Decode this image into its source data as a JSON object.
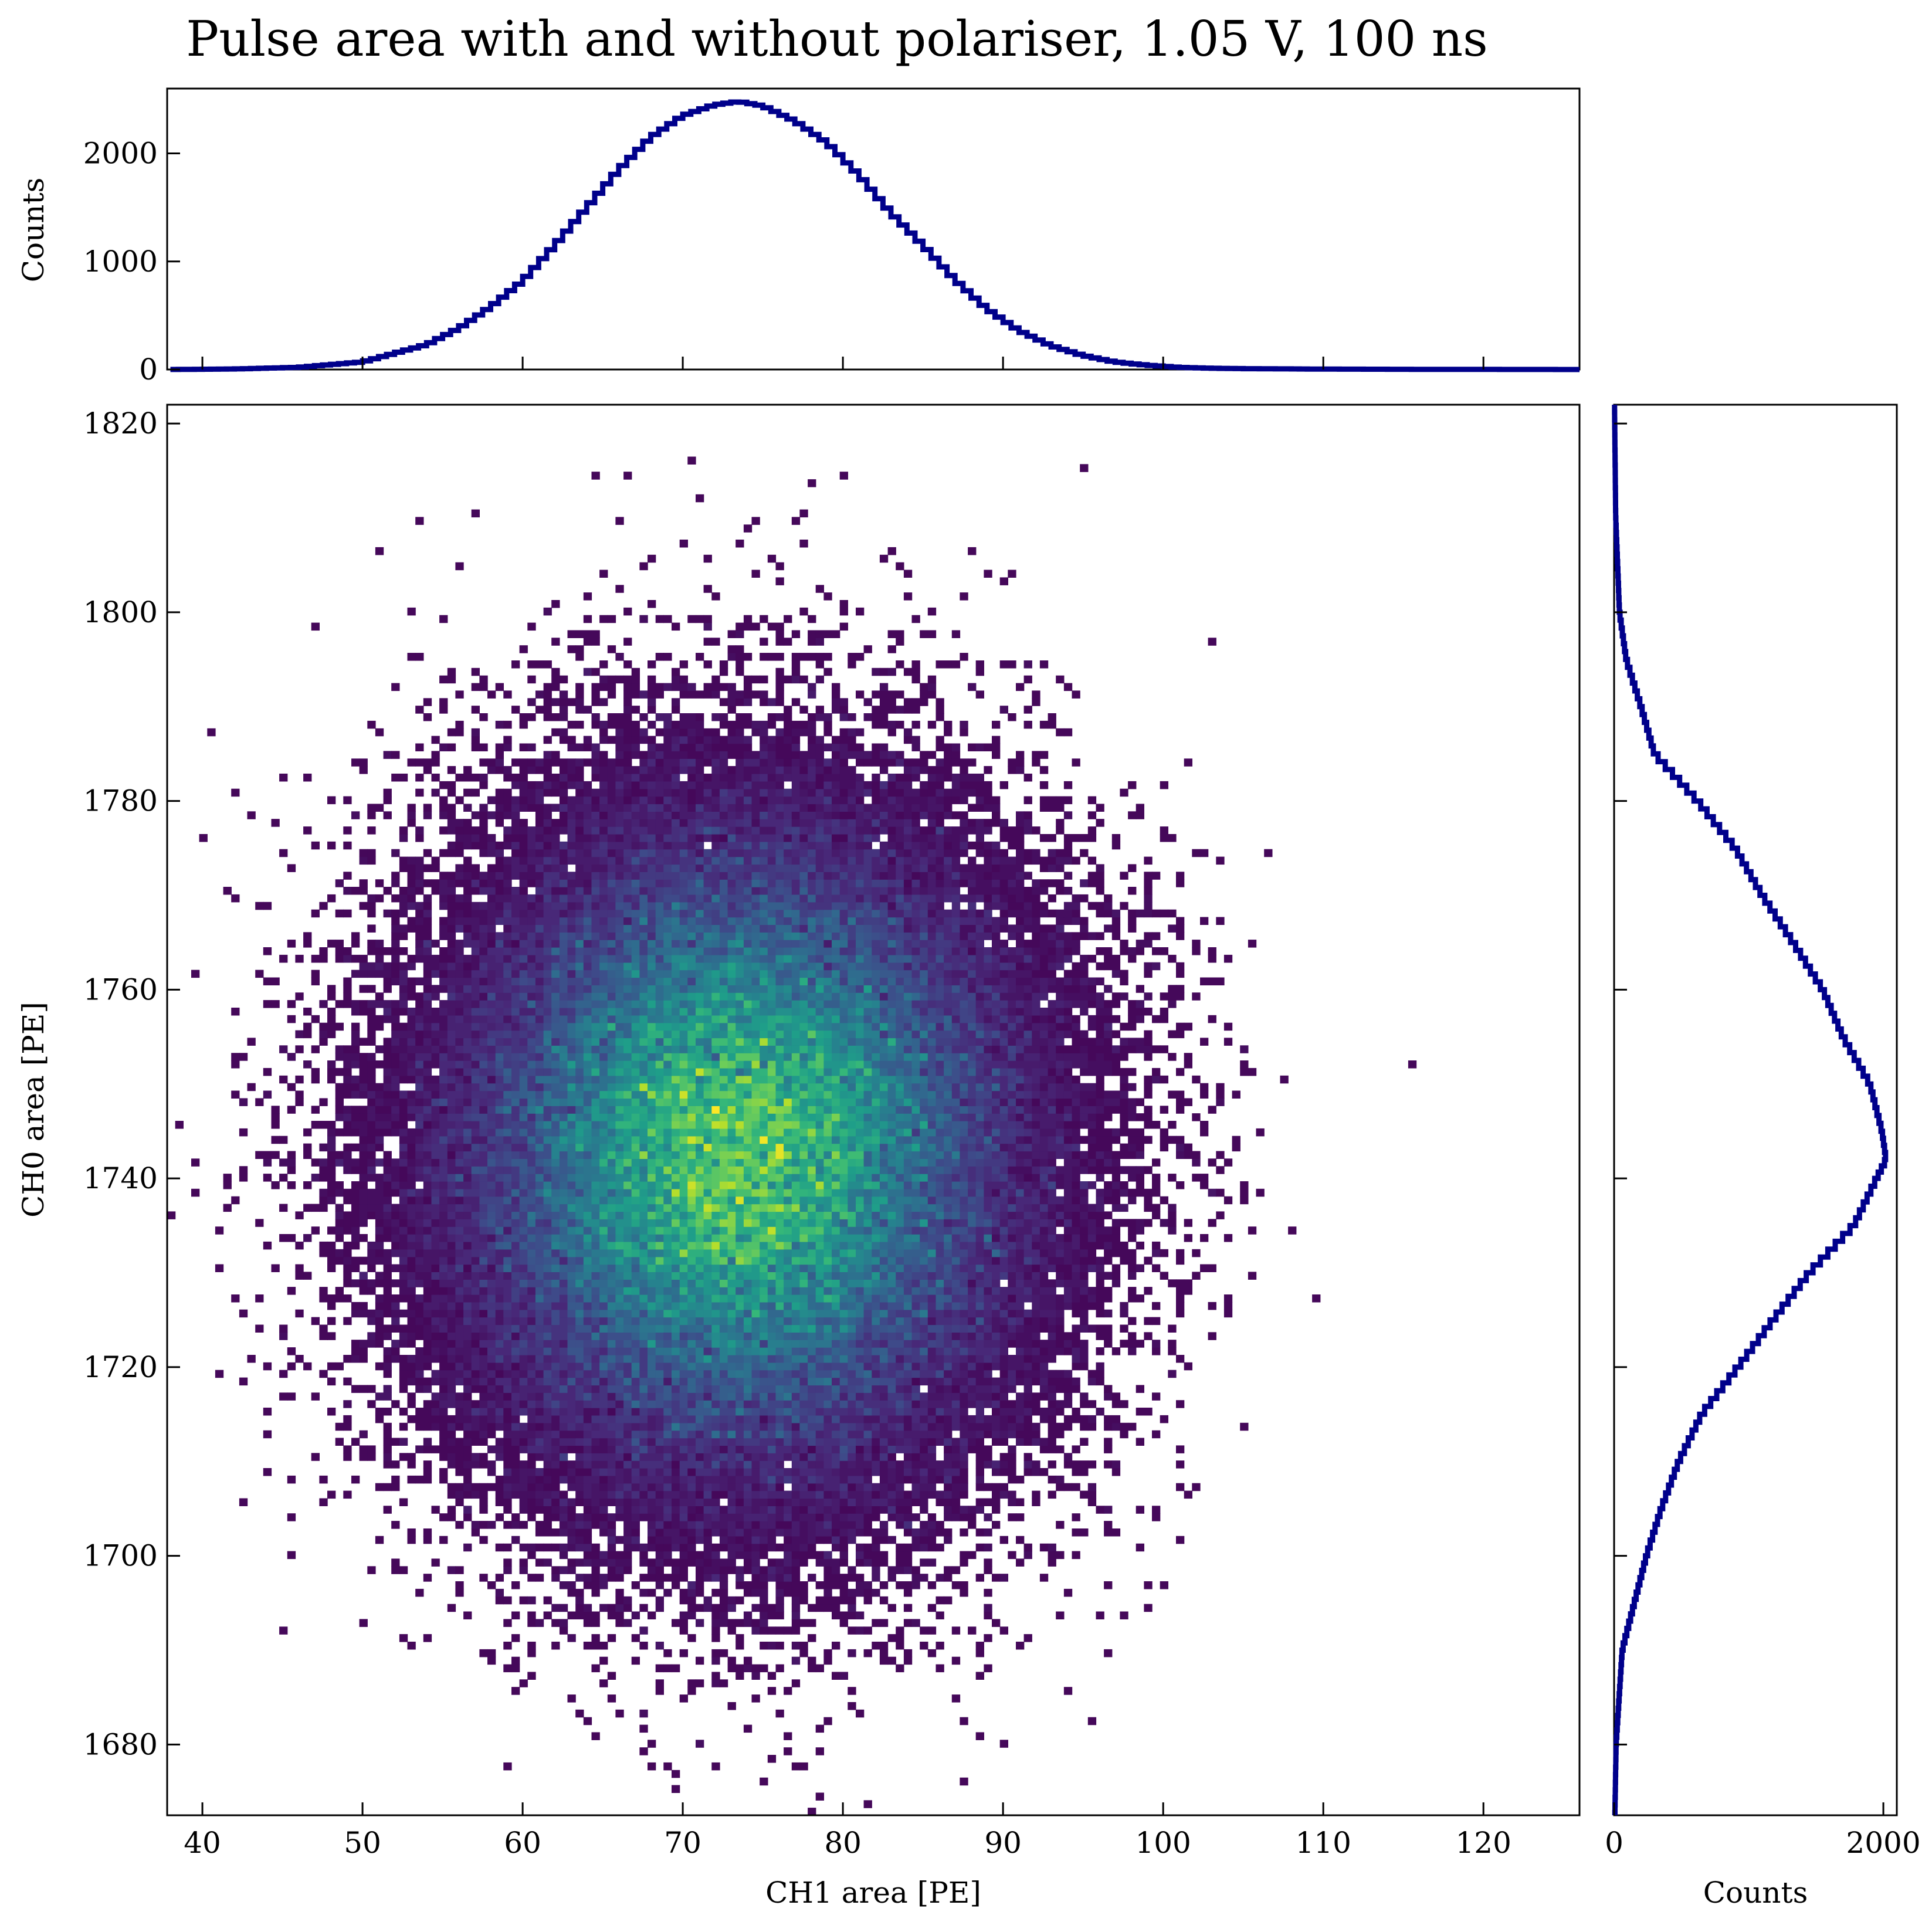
{
  "chart_data": [
    {
      "type": "heatmap",
      "title": "Pulse area with and without polariser, 1.05 V, 100 ns",
      "xlabel": "CH1 area [PE]",
      "ylabel": "CH0 area [PE]",
      "xlim": [
        37.8,
        126.0
      ],
      "ylim": [
        1672.5,
        1822.0
      ],
      "xticks": [
        "40",
        "50",
        "60",
        "70",
        "80",
        "90",
        "100",
        "110",
        "120"
      ],
      "yticks": [
        "1680",
        "1700",
        "1720",
        "1740",
        "1760",
        "1780",
        "1800",
        "1820"
      ],
      "colormap": "viridis",
      "distribution": {
        "center_x": 73.5,
        "center_y": 1743.0,
        "sigma_x": 9.0,
        "sigma_y": 17.5,
        "total_counts": 100000,
        "x_bin_width": 0.5,
        "y_bin_width": 0.8
      }
    },
    {
      "type": "line",
      "subtype": "step-histogram",
      "ylabel": "Counts",
      "ylim": [
        0,
        2600
      ],
      "yticks": [
        "0",
        "1000",
        "2000"
      ],
      "color": "#00008b",
      "x": [
        38,
        42,
        46,
        50,
        54,
        56,
        58,
        60,
        62,
        64,
        66,
        68,
        70,
        72,
        73.5,
        75,
        77,
        79,
        81,
        83,
        85,
        87,
        89,
        91,
        93,
        95,
        97,
        99,
        101,
        103,
        105,
        110,
        115,
        120,
        126
      ],
      "values": [
        0,
        5,
        20,
        70,
        230,
        380,
        580,
        820,
        1150,
        1500,
        1850,
        2150,
        2350,
        2450,
        2480,
        2440,
        2300,
        2100,
        1800,
        1450,
        1150,
        830,
        560,
        360,
        220,
        130,
        70,
        40,
        20,
        12,
        8,
        4,
        2,
        1,
        0
      ]
    },
    {
      "type": "line",
      "subtype": "step-histogram",
      "orientation": "horizontal",
      "xlabel": "Counts",
      "xlim": [
        0,
        2100
      ],
      "xticks": [
        "0",
        "2000"
      ],
      "color": "#00008b",
      "y": [
        1672,
        1680,
        1690,
        1700,
        1705,
        1710,
        1715,
        1720,
        1725,
        1730,
        1735,
        1740,
        1742,
        1745,
        1750,
        1755,
        1760,
        1765,
        1770,
        1775,
        1780,
        1785,
        1790,
        1795,
        1800,
        1810,
        1822
      ],
      "values": [
        5,
        15,
        60,
        240,
        350,
        480,
        650,
        920,
        1180,
        1450,
        1780,
        1950,
        2020,
        1990,
        1900,
        1700,
        1550,
        1330,
        1100,
        900,
        620,
        300,
        200,
        90,
        40,
        12,
        3
      ]
    }
  ]
}
